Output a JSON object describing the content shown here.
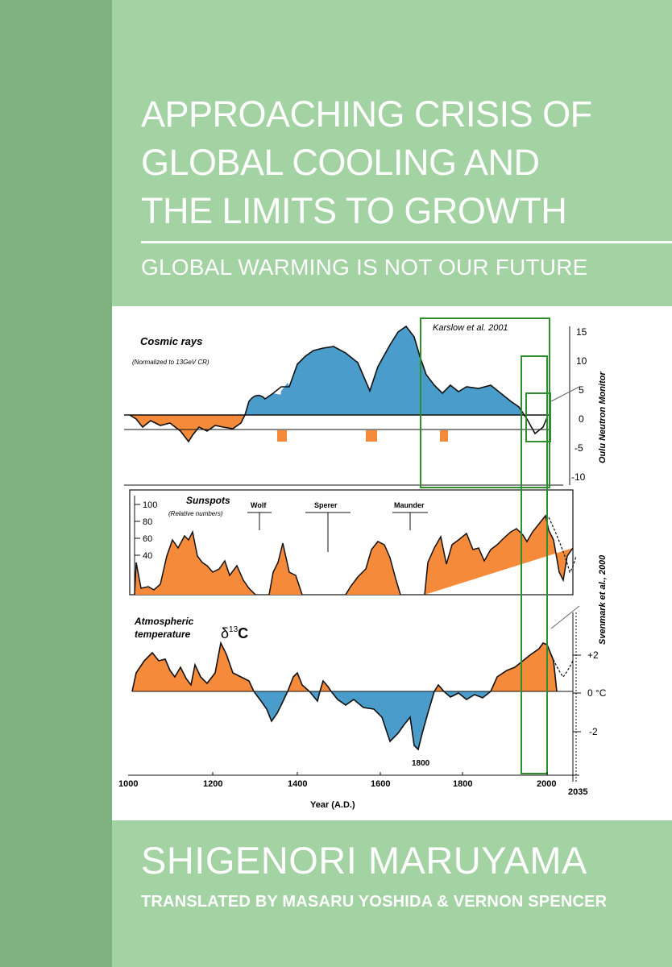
{
  "cover": {
    "title_lines": [
      "APPROACHING CRISIS OF",
      "GLOBAL COOLING AND",
      "THE LIMITS TO GROWTH"
    ],
    "subtitle": "GLOBAL WARMING IS NOT OUR FUTURE",
    "author": "SHIGENORI MARUYAMA",
    "translators": "TRANSLATED BY MASARU YOSHIDA & VERNON SPENCER",
    "colors": {
      "background": "#a3d2a3",
      "spine": "#7fb17f",
      "text": "#ffffff",
      "positive_fill": "#4a9ccb",
      "negative_fill": "#f58b3a",
      "box": "#2f8f2f"
    }
  },
  "figure": {
    "cosmic_title": "Cosmic rays",
    "cosmic_subtitle": "(Normalized to 13GeV CR)",
    "cosmic_source": "Karslow et al. 2001",
    "cosmic_right_axis_label": "Oulu Neutron Monitor",
    "cosmic_right_ticks": [
      "15",
      "10",
      "5",
      "0",
      "-5",
      "-10"
    ],
    "sunspots_title": "Sunspots",
    "sunspots_subtitle": "(Relative numbers)",
    "sunspot_ticks": [
      "100",
      "80",
      "60",
      "40"
    ],
    "minima_labels": [
      "Wolf",
      "Sperer",
      "Maunder"
    ],
    "sunspots_source": "Svenmark et al., 2000",
    "temp_title_1": "Atmospheric",
    "temp_title_2": "temperature",
    "delta_symbol": "δ",
    "delta_sup": "13",
    "delta_c": "C",
    "temp_right_ticks": [
      "+2",
      "0 °C",
      "-2"
    ],
    "annotation_1800": "1800",
    "x_ticks": [
      "1000",
      "1200",
      "1400",
      "1600",
      "1800",
      "2000",
      "2035"
    ],
    "x_axis_label": "Year (A.D.)"
  }
}
